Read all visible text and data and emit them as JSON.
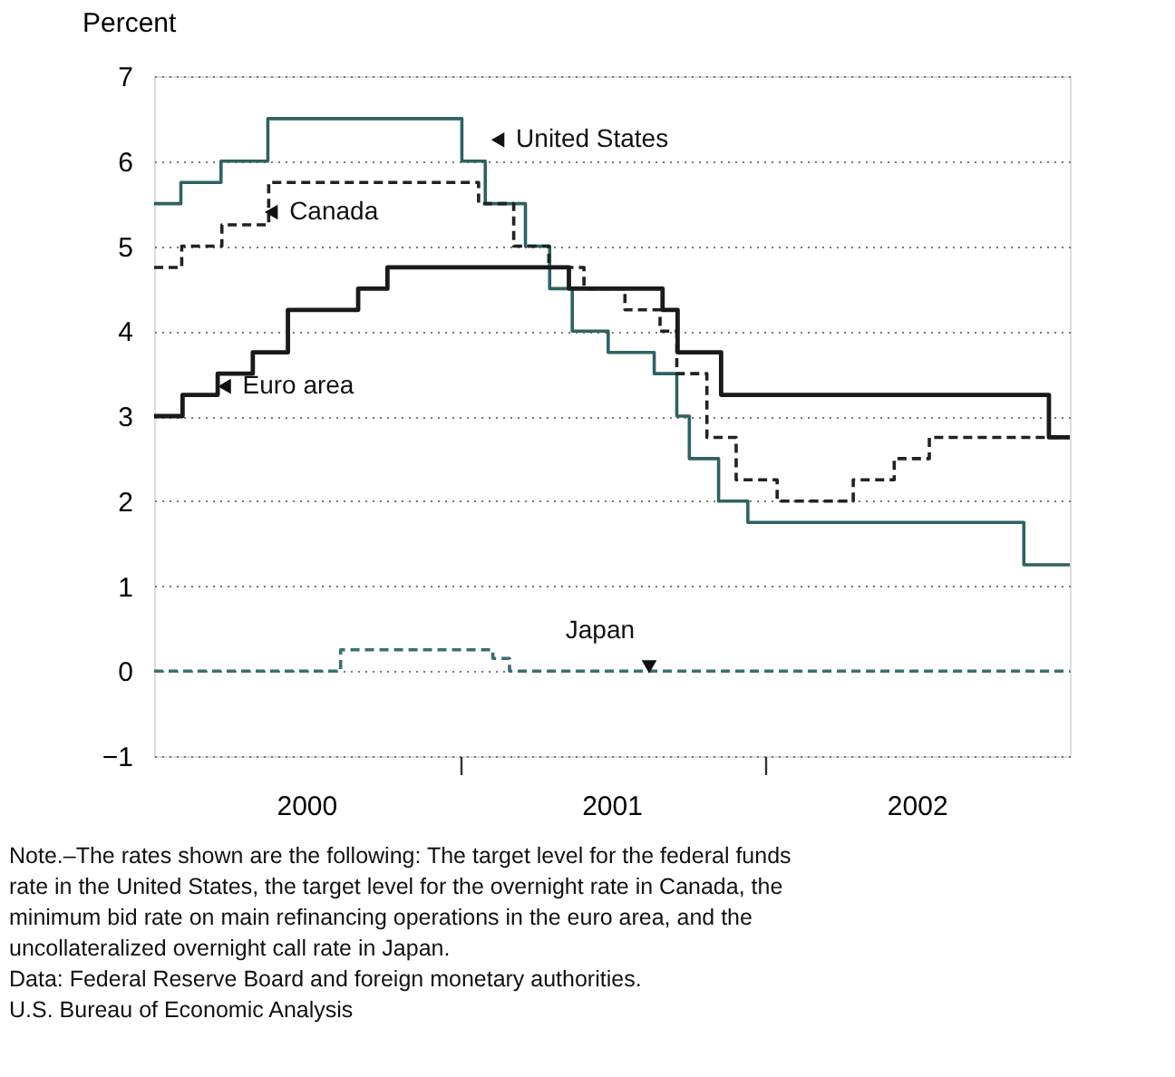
{
  "chart_data": {
    "type": "step",
    "ylabel": "Percent",
    "xlim": [
      "2000-01-01",
      "2002-12-31"
    ],
    "xticks": [
      {
        "value": "2000-07-01",
        "label": "2000"
      },
      {
        "value": "2001-01-01",
        "label": null
      },
      {
        "value": "2001-07-01",
        "label": "2001"
      },
      {
        "value": "2002-01-01",
        "label": null
      },
      {
        "value": "2002-07-01",
        "label": "2002"
      }
    ],
    "ylim": [
      -1,
      7
    ],
    "yticks": [
      -1,
      0,
      1,
      2,
      3,
      4,
      5,
      6,
      7
    ],
    "grid": "y",
    "series": [
      {
        "color": "#2e6262",
        "line_style": "solid",
        "x": [
          "2000-01-01",
          "2000-02-02",
          "2000-03-21",
          "2000-05-16",
          "2001-01-03",
          "2001-01-31",
          "2001-03-20",
          "2001-04-18",
          "2001-05-15",
          "2001-06-27",
          "2001-08-21",
          "2001-09-17",
          "2001-10-02",
          "2001-11-06",
          "2001-12-11",
          "2002-11-06",
          "2002-12-31"
        ],
        "values": [
          5.5,
          5.75,
          6.0,
          6.5,
          6.0,
          5.5,
          5.0,
          4.5,
          4.0,
          3.75,
          3.5,
          3.0,
          2.5,
          2.0,
          1.75,
          1.25,
          1.25
        ]
      },
      {
        "color": "#222222",
        "line_style": "dashed",
        "x": [
          "2000-01-01",
          "2000-02-03",
          "2000-03-22",
          "2000-05-17",
          "2001-01-23",
          "2001-03-06",
          "2001-04-17",
          "2001-05-29",
          "2001-07-17",
          "2001-08-28",
          "2001-09-17",
          "2001-10-23",
          "2001-11-27",
          "2002-01-15",
          "2002-04-16",
          "2002-06-04",
          "2002-07-16",
          "2002-12-31"
        ],
        "values": [
          4.75,
          5.0,
          5.25,
          5.75,
          5.5,
          5.0,
          4.75,
          4.5,
          4.25,
          4.0,
          3.5,
          2.75,
          2.25,
          2.0,
          2.25,
          2.5,
          2.75,
          2.75
        ]
      },
      {
        "color": "#1a1a1a",
        "line_style": "solid",
        "x": [
          "2000-01-01",
          "2000-02-04",
          "2000-03-17",
          "2000-04-28",
          "2000-06-09",
          "2000-09-01",
          "2000-10-06",
          "2001-05-11",
          "2001-08-31",
          "2001-09-18",
          "2001-11-09",
          "2002-12-06",
          "2002-12-31"
        ],
        "values": [
          3.0,
          3.25,
          3.5,
          3.75,
          4.25,
          4.5,
          4.75,
          4.5,
          4.25,
          3.75,
          3.25,
          2.75,
          2.75
        ]
      },
      {
        "color": "#3a7070",
        "line_style": "dashed",
        "x": [
          "2000-01-01",
          "2000-08-11",
          "2001-02-09",
          "2001-03-01",
          "2002-12-31"
        ],
        "values": [
          0.0,
          0.25,
          0.15,
          0.0,
          0.0
        ]
      }
    ],
    "annotations": [
      {
        "text": "United States",
        "x": "2001-02-15",
        "y": 6.25
      },
      {
        "text": "Canada",
        "x": "2000-05-20",
        "y": 5.4
      },
      {
        "text": "Euro area",
        "x": "2000-03-25",
        "y": 3.35
      },
      {
        "text": "Japan",
        "x": "2001-08-15",
        "y": 0.05
      },
      "Note.–The rates shown are the following: The target level for the federal funds rate in the United States, the target level for the overnight rate in Canada, the minimum bid rate on main refinancing operations in the euro area, and the uncollateralized overnight call rate in Japan.",
      "Data: Federal Reserve Board and foreign monetary authorities.",
      "U.S. Bureau of Economic Analysis"
    ]
  }
}
